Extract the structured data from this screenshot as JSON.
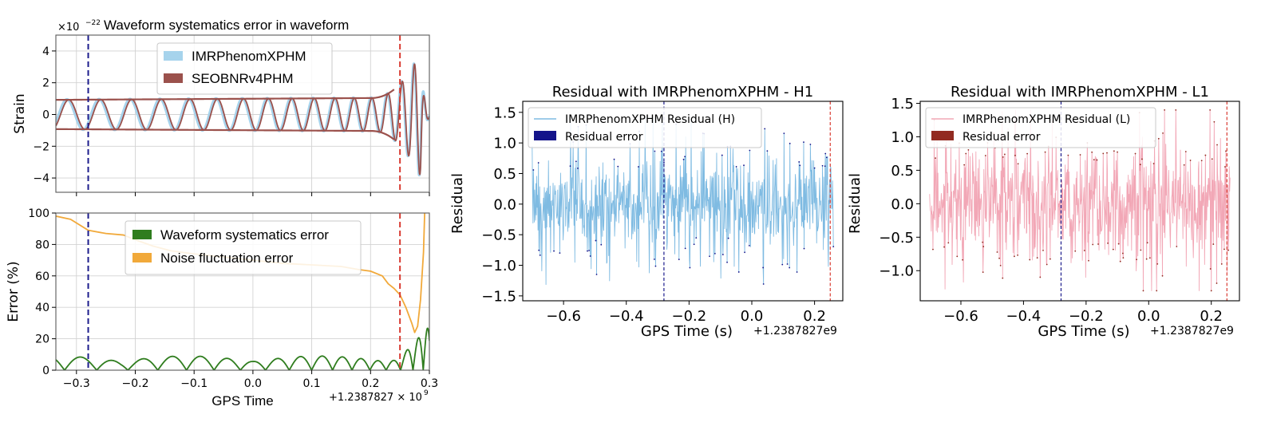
{
  "chart_data": [
    {
      "id": "strain",
      "type": "line",
      "title": "Waveform systematics error in waveform",
      "ylabel": "Strain",
      "y_multiplier_text": "×10",
      "y_multiplier_exp": "−22",
      "xlim": [
        -0.335,
        0.3
      ],
      "ylim": [
        -4.9,
        5.0
      ],
      "xticks": [
        -0.3,
        -0.2,
        -0.1,
        0.0,
        0.1,
        0.2,
        0.3
      ],
      "yticks": [
        -4,
        -2,
        0,
        2,
        4
      ],
      "ytick_labels": [
        "−4",
        "−2",
        "0",
        "2",
        "4"
      ],
      "grid": true,
      "legend_position": "upper-center",
      "series": [
        {
          "name": "IMRPhenomXPHM",
          "color": "#a6d3ec"
        },
        {
          "name": "SEOBNRv4PHM",
          "color": "#9b514c"
        }
      ],
      "vlines": [
        {
          "x": -0.28,
          "color": "#1c1c8c",
          "style": "dashed"
        },
        {
          "x": 0.25,
          "color": "#d93c32",
          "style": "dashed"
        }
      ]
    },
    {
      "id": "error",
      "type": "line",
      "ylabel": "Error (%)",
      "xlabel": "GPS Time",
      "offset_text": "+1.2387827 × 10",
      "offset_exp": "9",
      "xlim": [
        -0.335,
        0.3
      ],
      "ylim": [
        0,
        100
      ],
      "xticks": [
        -0.3,
        -0.2,
        -0.1,
        0.0,
        0.1,
        0.2,
        0.3
      ],
      "xtick_labels": [
        "−0.3",
        "−0.2",
        "−0.1",
        "0.0",
        "0.1",
        "0.2",
        "0.3"
      ],
      "yticks": [
        0,
        20,
        40,
        60,
        80,
        100
      ],
      "ytick_labels": [
        "0",
        "20",
        "40",
        "60",
        "80",
        "100"
      ],
      "grid": true,
      "legend_position": "upper-center",
      "series": [
        {
          "name": "Waveform systematics error",
          "color": "#2f7d1e"
        },
        {
          "name": "Noise fluctuation error",
          "color": "#f1a93a",
          "points": [
            [
              -0.335,
              98
            ],
            [
              -0.31,
              96
            ],
            [
              -0.28,
              89
            ],
            [
              -0.25,
              87
            ],
            [
              -0.22,
              86
            ],
            [
              -0.2,
              83
            ],
            [
              -0.17,
              79
            ],
            [
              -0.14,
              76
            ],
            [
              -0.1,
              74
            ],
            [
              -0.05,
              72
            ],
            [
              0.0,
              70
            ],
            [
              0.05,
              68
            ],
            [
              0.1,
              67
            ],
            [
              0.15,
              66
            ],
            [
              0.18,
              64
            ],
            [
              0.2,
              63
            ],
            [
              0.22,
              60
            ],
            [
              0.23,
              55
            ],
            [
              0.24,
              52
            ],
            [
              0.25,
              48
            ],
            [
              0.26,
              40
            ],
            [
              0.27,
              30
            ],
            [
              0.275,
              24
            ],
            [
              0.28,
              28
            ],
            [
              0.285,
              45
            ],
            [
              0.29,
              75
            ],
            [
              0.292,
              100
            ]
          ]
        }
      ],
      "vlines": [
        {
          "x": -0.28,
          "color": "#1c1c8c",
          "style": "dashed"
        },
        {
          "x": 0.25,
          "color": "#d93c32",
          "style": "dashed"
        }
      ]
    },
    {
      "id": "residual_h1",
      "type": "line",
      "title": "Residual with IMRPhenomXPHM - H1",
      "xlabel": "GPS Time (s)",
      "ylabel": "Residual",
      "offset_text": "+1.2387827e9",
      "xlim": [
        -0.73,
        0.29
      ],
      "ylim": [
        -1.58,
        1.68
      ],
      "xticks": [
        -0.6,
        -0.4,
        -0.2,
        0.0,
        0.2
      ],
      "xtick_labels": [
        "−0.6",
        "−0.4",
        "−0.2",
        "0.0",
        "0.2"
      ],
      "yticks": [
        -1.5,
        -1.0,
        -0.5,
        0.0,
        0.5,
        1.0,
        1.5
      ],
      "ytick_labels": [
        "−1.5",
        "−1.0",
        "−0.5",
        "0.0",
        "0.5",
        "1.0",
        "1.5"
      ],
      "grid": false,
      "legend_position": "upper-left",
      "series": [
        {
          "name": "IMRPhenomXPHM Residual (H)",
          "color": "#7fbbe2"
        },
        {
          "name": "Residual error",
          "color": "#14148a"
        }
      ],
      "x_range": [
        -0.7,
        0.26
      ],
      "amplitude_range": [
        -1.45,
        1.4
      ],
      "vlines": [
        {
          "x": -0.28,
          "color": "#1c1c8c",
          "style": "dashed"
        },
        {
          "x": 0.25,
          "color": "#d93c32",
          "style": "dashed"
        }
      ]
    },
    {
      "id": "residual_l1",
      "type": "line",
      "title": "Residual with IMRPhenomXPHM - L1",
      "xlabel": "GPS Time (s)",
      "ylabel": "Residual",
      "offset_text": "+1.2387827e9",
      "xlim": [
        -0.73,
        0.29
      ],
      "ylim": [
        -1.45,
        1.53
      ],
      "xticks": [
        -0.6,
        -0.4,
        -0.2,
        0.0,
        0.2
      ],
      "xtick_labels": [
        "−0.6",
        "−0.4",
        "−0.2",
        "0.0",
        "0.2"
      ],
      "yticks": [
        -1.0,
        -0.5,
        0.0,
        0.5,
        1.0,
        1.5
      ],
      "ytick_labels": [
        "−1.0",
        "−0.5",
        "0.0",
        "0.5",
        "1.0",
        "1.5"
      ],
      "grid": false,
      "legend_position": "upper-left",
      "series": [
        {
          "name": "IMRPhenomXPHM Residual (L)",
          "color": "#f2a7b6"
        },
        {
          "name": "Residual error",
          "color": "#922b21"
        }
      ],
      "x_range": [
        -0.7,
        0.26
      ],
      "amplitude_range": [
        -1.3,
        1.4
      ],
      "vlines": [
        {
          "x": -0.28,
          "color": "#1c1c8c",
          "style": "dashed"
        },
        {
          "x": 0.25,
          "color": "#d93c32",
          "style": "dashed"
        }
      ]
    }
  ]
}
